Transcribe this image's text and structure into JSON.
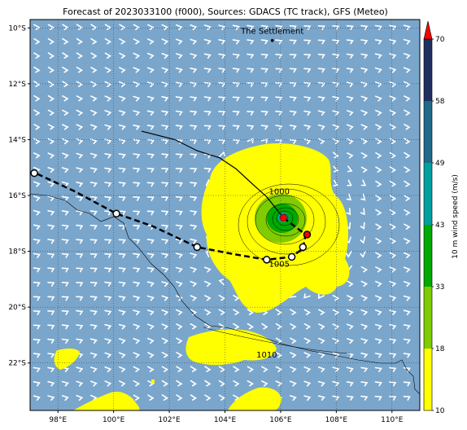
{
  "title": "Forecast of 2023033100 (f000), Sources: GDACS (TC track), GFS (Meteo)",
  "place_label": "The Settlement",
  "colors": {
    "ocean": "#7aa6cc",
    "band_10_18": "#ffff00",
    "band_18_33": "#7fcc00",
    "band_33_43": "#00aa00",
    "band_43_49": "#00a0a0",
    "band_49_58": "#1f6a8a",
    "band_58_70": "#1f2f60",
    "extend_max": "#ff0000",
    "track_past": "#000000",
    "storm_marker": "#ff0000"
  },
  "map": {
    "lon_range": [
      97,
      111
    ],
    "lat_range": [
      -23.7,
      -9.7
    ],
    "lon_ticks": [
      {
        "value": 98,
        "label": "98°E"
      },
      {
        "value": 100,
        "label": "100°E"
      },
      {
        "value": 102,
        "label": "102°E"
      },
      {
        "value": 104,
        "label": "104°E"
      },
      {
        "value": 106,
        "label": "106°E"
      },
      {
        "value": 108,
        "label": "108°E"
      },
      {
        "value": 110,
        "label": "110°E"
      }
    ],
    "lat_ticks": [
      {
        "value": -10,
        "label": "10°S"
      },
      {
        "value": -12,
        "label": "12°S"
      },
      {
        "value": -14,
        "label": "14°S"
      },
      {
        "value": -16,
        "label": "16°S"
      },
      {
        "value": -18,
        "label": "18°S"
      },
      {
        "value": -20,
        "label": "20°S"
      },
      {
        "value": -22,
        "label": "22°S"
      }
    ],
    "grid": true,
    "place": {
      "lon": 105.7,
      "lat": -10.45
    },
    "storm_center": {
      "lon": 106.1,
      "lat": -16.8
    },
    "past_track": [
      {
        "lon": 101.0,
        "lat": -13.7
      },
      {
        "lon": 102.2,
        "lat": -14.0
      },
      {
        "lon": 103.0,
        "lat": -14.4
      },
      {
        "lon": 103.8,
        "lat": -14.65
      },
      {
        "lon": 104.4,
        "lat": -15.05
      },
      {
        "lon": 105.0,
        "lat": -15.6
      },
      {
        "lon": 105.5,
        "lat": -16.05
      },
      {
        "lon": 106.1,
        "lat": -16.8
      }
    ],
    "forecast_track": [
      {
        "lon": 106.1,
        "lat": -16.8
      },
      {
        "lon": 106.9,
        "lat": -17.4
      },
      {
        "lon": 106.8,
        "lat": -17.9
      },
      {
        "lon": 106.4,
        "lat": -18.2
      },
      {
        "lon": 105.5,
        "lat": -18.3
      },
      {
        "lon": 104.3,
        "lat": -18.1
      },
      {
        "lon": 103.0,
        "lat": -17.85
      },
      {
        "lon": 101.4,
        "lat": -17.1
      },
      {
        "lon": 100.1,
        "lat": -16.65
      },
      {
        "lon": 98.6,
        "lat": -15.85
      },
      {
        "lon": 97.2,
        "lat": -15.2
      }
    ],
    "forecast_points": [
      {
        "lon": 106.95,
        "lat": -17.4,
        "color": "#ff0000"
      },
      {
        "lon": 106.8,
        "lat": -17.85,
        "color": "#ffffff"
      },
      {
        "lon": 106.4,
        "lat": -18.2,
        "color": "#ffffff"
      },
      {
        "lon": 105.5,
        "lat": -18.3,
        "color": "#ffffff"
      },
      {
        "lon": 103.0,
        "lat": -17.85,
        "color": "#ffffff"
      },
      {
        "lon": 100.1,
        "lat": -16.65,
        "color": "#ffffff"
      },
      {
        "lon": 97.15,
        "lat": -15.2,
        "color": "#ffffff"
      }
    ],
    "isobar_labels": [
      {
        "text": "1000",
        "lon": 105.95,
        "lat": -15.95
      },
      {
        "text": "1005",
        "lon": 105.95,
        "lat": -18.55
      },
      {
        "text": "1010",
        "lon": 105.5,
        "lat": -21.8
      }
    ]
  },
  "colorbar": {
    "label": "10 m wind speed (m/s)",
    "ticks": [
      {
        "value": 10,
        "label": "10"
      },
      {
        "value": 18,
        "label": "18"
      },
      {
        "value": 33,
        "label": "33"
      },
      {
        "value": 43,
        "label": "43"
      },
      {
        "value": 49,
        "label": "49"
      },
      {
        "value": 58,
        "label": "58"
      },
      {
        "value": 70,
        "label": "70"
      }
    ]
  }
}
